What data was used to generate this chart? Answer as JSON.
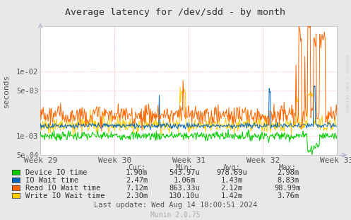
{
  "title": "Average latency for /dev/sdd - by month",
  "ylabel": "seconds",
  "xlabel_ticks": [
    "Week 29",
    "Week 30",
    "Week 31",
    "Week 32",
    "Week 33"
  ],
  "bg_color": "#e8e8e8",
  "plot_bg_color": "#ffffff",
  "watermark": "RRDTOOL / TOBI OETIKER",
  "munin_version": "Munin 2.0.75",
  "legend": [
    {
      "label": "Device IO time",
      "color": "#00cc00"
    },
    {
      "label": "IO Wait time",
      "color": "#0066bb"
    },
    {
      "label": "Read IO Wait time",
      "color": "#ff6600"
    },
    {
      "label": "Write IO Wait time",
      "color": "#ffcc00"
    }
  ],
  "stats_header": [
    "Cur:",
    "Min:",
    "Avg:",
    "Max:"
  ],
  "stats": [
    [
      "1.90m",
      "543.97u",
      "978.69u",
      "2.98m"
    ],
    [
      "2.47m",
      "1.06m",
      "1.43m",
      "8.83m"
    ],
    [
      "7.12m",
      "863.33u",
      "2.12m",
      "98.99m"
    ],
    [
      "2.30m",
      "130.10u",
      "1.42m",
      "3.76m"
    ]
  ],
  "last_update": "Last update: Wed Aug 14 18:00:51 2024",
  "n_points": 500,
  "seed": 7
}
